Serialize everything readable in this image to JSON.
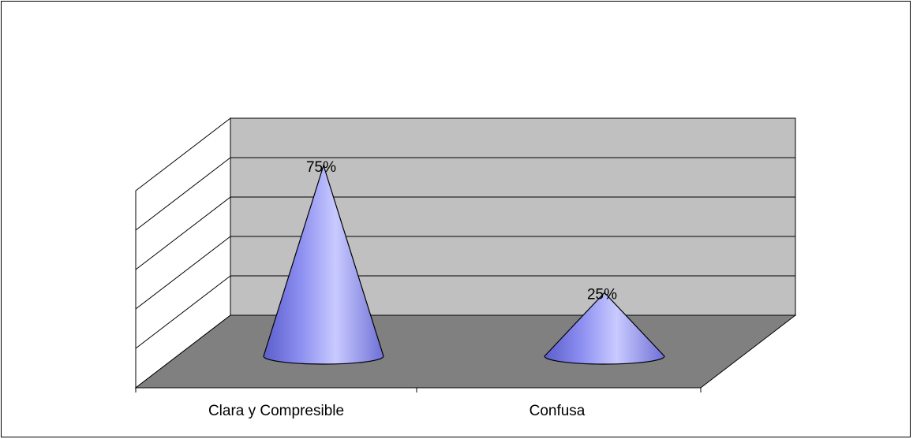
{
  "chart_data": {
    "type": "bar",
    "style": "3d-cone",
    "categories": [
      "Clara y Compresible",
      "Confusa"
    ],
    "values": [
      75,
      25
    ],
    "value_labels": [
      "75%",
      "25%"
    ],
    "title": "",
    "xlabel": "",
    "ylabel": "",
    "ylim": [
      0,
      80
    ],
    "grid": true,
    "legend": "none",
    "colors": {
      "back_wall": "#c0c0c0",
      "floor": "#808080",
      "cone_light": "#c9caff",
      "cone_dark": "#6e70d6",
      "outline": "#000000"
    }
  }
}
